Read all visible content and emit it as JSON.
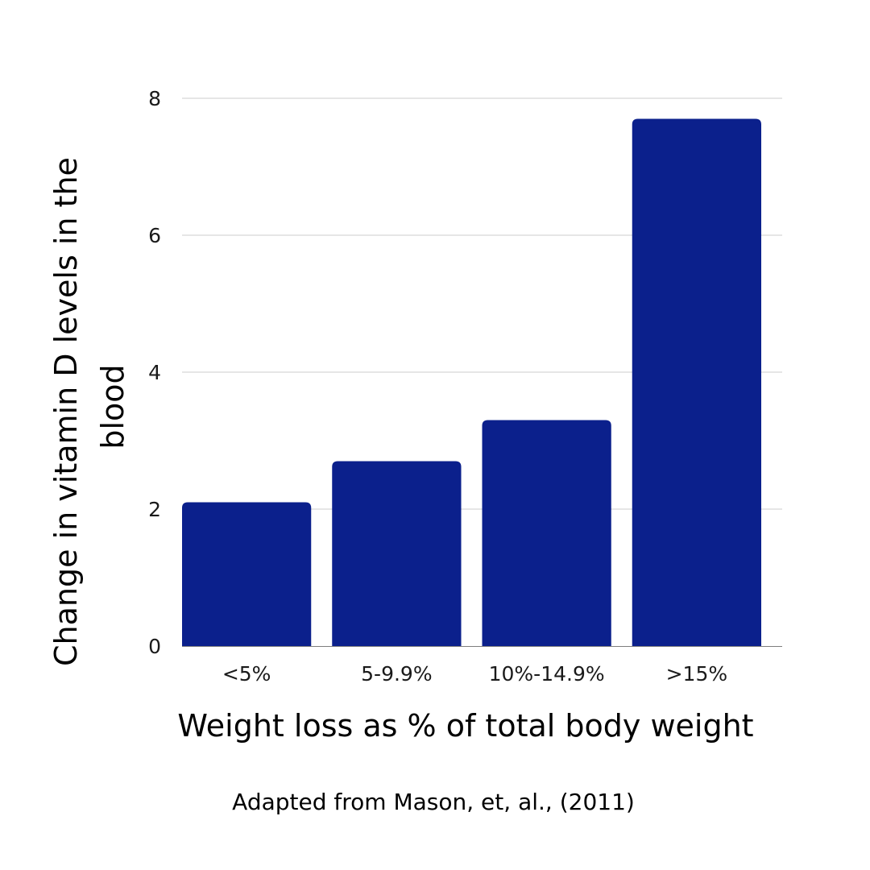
{
  "chart_data": {
    "type": "bar",
    "title": "",
    "categories": [
      "<5%",
      "5-9.9%",
      "10%-14.9%",
      ">15%"
    ],
    "series": [
      {
        "name": "Change in vitamin D levels in the blood",
        "values": [
          2.1,
          2.7,
          3.3,
          7.7
        ]
      }
    ],
    "xlabel": "Weight loss as % of total body weight",
    "ylabel_lines": [
      "Change in vitamin D levels in the",
      "blood"
    ],
    "ylim": [
      0,
      8
    ],
    "yticks": [
      0,
      2,
      4,
      6,
      8
    ],
    "grid": true,
    "legend": "none",
    "bar_color": "#0b208c",
    "caption": "Adapted from Mason, et, al., (2011)"
  }
}
